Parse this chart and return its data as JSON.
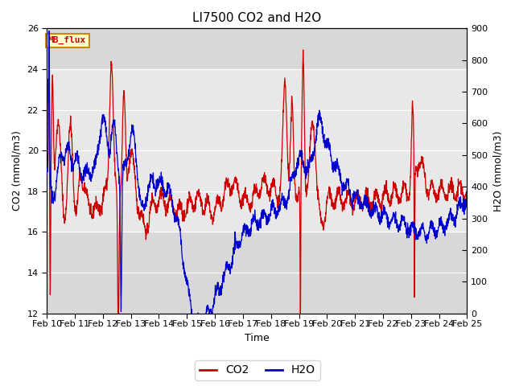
{
  "title": "LI7500 CO2 and H2O",
  "xlabel": "Time",
  "ylabel_left": "CO2 (mmol/m3)",
  "ylabel_right": "H2O (mmol/m3)",
  "xlim": [
    0,
    15
  ],
  "ylim_left": [
    12,
    26
  ],
  "ylim_right": [
    0,
    900
  ],
  "xtick_labels": [
    "Feb 10",
    "Feb 11",
    "Feb 12",
    "Feb 13",
    "Feb 14",
    "Feb 15",
    "Feb 16",
    "Feb 17",
    "Feb 18",
    "Feb 19",
    "Feb 20",
    "Feb 21",
    "Feb 22",
    "Feb 23",
    "Feb 24",
    "Feb 25"
  ],
  "xtick_positions": [
    0,
    1,
    2,
    3,
    4,
    5,
    6,
    7,
    8,
    9,
    10,
    11,
    12,
    13,
    14,
    15
  ],
  "yticks_left": [
    12,
    14,
    16,
    18,
    20,
    22,
    24,
    26
  ],
  "yticks_right": [
    0,
    100,
    200,
    300,
    400,
    500,
    600,
    700,
    800,
    900
  ],
  "background_color": "#ffffff",
  "plot_bg_color": "#d8d8d8",
  "band_color": "#e8e8e8",
  "co2_color": "#cc0000",
  "h2o_color": "#0000cc",
  "legend_co2": "CO2",
  "legend_h2o": "H2O",
  "label_box_text": "MB_flux",
  "label_box_facecolor": "#ffffcc",
  "label_box_edgecolor": "#cc8800"
}
